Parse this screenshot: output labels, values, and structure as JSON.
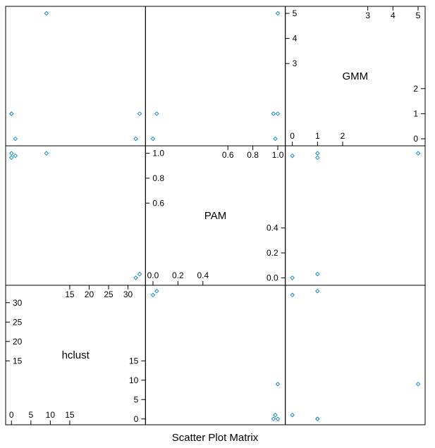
{
  "chart_data": {
    "type": "scatter",
    "title": "Scatter Plot Matrix",
    "variables": [
      "hclust",
      "PAM",
      "GMM"
    ],
    "point_color": "#1a8ec9",
    "point_shape": "open-diamond",
    "grid": false,
    "points": {
      "hclust": [
        0,
        0,
        1,
        9,
        32,
        33
      ],
      "PAM": [
        0.965,
        1.0,
        0.98,
        1.0,
        0.0,
        0.03
      ],
      "GMM": [
        1,
        1,
        0,
        5,
        0,
        1
      ]
    },
    "axes": {
      "hclust": {
        "range": [
          -1.5,
          34.5
        ],
        "ticks_low": [
          "0",
          "5",
          "10",
          "15"
        ],
        "ticks_low_values": [
          0,
          5,
          10,
          15
        ],
        "ticks_high": [
          "15",
          "20",
          "25",
          "30"
        ],
        "ticks_high_values": [
          15,
          20,
          25,
          30
        ]
      },
      "PAM": {
        "range": [
          -0.06,
          1.06
        ],
        "ticks_low": [
          "0.0",
          "0.2",
          "0.4"
        ],
        "ticks_low_values": [
          0.0,
          0.2,
          0.4
        ],
        "ticks_high": [
          "0.6",
          "0.8",
          "1.0"
        ],
        "ticks_high_values": [
          0.6,
          0.8,
          1.0
        ]
      },
      "GMM": {
        "range": [
          -0.28,
          5.28
        ],
        "ticks_low": [
          "0",
          "1",
          "2"
        ],
        "ticks_low_values": [
          0,
          1,
          2
        ],
        "ticks_high": [
          "3",
          "4",
          "5"
        ],
        "ticks_high_values": [
          3,
          4,
          5
        ]
      }
    }
  }
}
